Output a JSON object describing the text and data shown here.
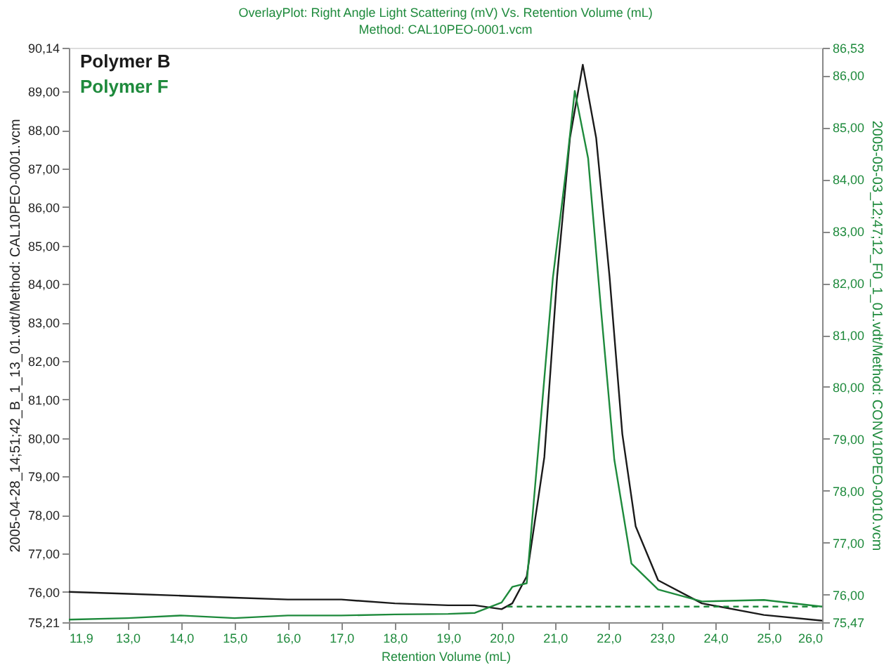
{
  "chart_data": {
    "type": "line",
    "title": "OverlayPlot: Right Angle Light Scattering (mV) Vs. Retention Volume (mL)",
    "subtitle": "Method: CAL10PEO-0001.vcm",
    "xlabel": "Retention Volume (mL)",
    "ylabel": "2005-04-28_14;51;42_B_1_13_01.vdt/Method: CAL10PEO-0001.vcm",
    "y2label": "2005-05-03_12;47;12_F0_1_01.vdt/Method: CONV10PEO-0010.vcm",
    "xlim": [
      11.9,
      26.0
    ],
    "xticks": [
      {
        "value": 11.9,
        "label": "11,9"
      },
      {
        "value": 13,
        "label": "13,0"
      },
      {
        "value": 14,
        "label": "14,0"
      },
      {
        "value": 15,
        "label": "15,0"
      },
      {
        "value": 16,
        "label": "16,0"
      },
      {
        "value": 17,
        "label": "17,0"
      },
      {
        "value": 18,
        "label": "18,0"
      },
      {
        "value": 19,
        "label": "19,0"
      },
      {
        "value": 20,
        "label": "20,0"
      },
      {
        "value": 21,
        "label": "21,0"
      },
      {
        "value": 22,
        "label": "22,0"
      },
      {
        "value": 23,
        "label": "23,0"
      },
      {
        "value": 24,
        "label": "24,0"
      },
      {
        "value": 25,
        "label": "25,0"
      },
      {
        "value": 26,
        "label": "26,0"
      }
    ],
    "ylim": [
      75.21,
      90.14
    ],
    "yticks": [
      {
        "value": 75.21,
        "label": "75,21"
      },
      {
        "value": 76,
        "label": "76,00"
      },
      {
        "value": 77,
        "label": "77,00"
      },
      {
        "value": 78,
        "label": "78,00"
      },
      {
        "value": 79,
        "label": "79,00"
      },
      {
        "value": 80,
        "label": "80,00"
      },
      {
        "value": 81,
        "label": "81,00"
      },
      {
        "value": 82,
        "label": "82,00"
      },
      {
        "value": 83,
        "label": "83,00"
      },
      {
        "value": 84,
        "label": "84,00"
      },
      {
        "value": 85,
        "label": "85,00"
      },
      {
        "value": 86,
        "label": "86,00"
      },
      {
        "value": 87,
        "label": "87,00"
      },
      {
        "value": 88,
        "label": "88,00"
      },
      {
        "value": 89,
        "label": "89,00"
      },
      {
        "value": 90.14,
        "label": "90,14"
      }
    ],
    "y2lim": [
      75.47,
      86.53
    ],
    "y2ticks": [
      {
        "value": 75.47,
        "label": "75,47"
      },
      {
        "value": 76,
        "label": "76,00"
      },
      {
        "value": 77,
        "label": "77,00"
      },
      {
        "value": 78,
        "label": "78,00"
      },
      {
        "value": 79,
        "label": "79,00"
      },
      {
        "value": 80,
        "label": "80,00"
      },
      {
        "value": 81,
        "label": "81,00"
      },
      {
        "value": 82,
        "label": "82,00"
      },
      {
        "value": 83,
        "label": "83,00"
      },
      {
        "value": 84,
        "label": "84,00"
      },
      {
        "value": 85,
        "label": "85,00"
      },
      {
        "value": 86,
        "label": "86,00"
      },
      {
        "value": 86.53,
        "label": "86,53"
      }
    ],
    "grid": false,
    "legend": "top left",
    "marker": "none",
    "series": [
      {
        "name": "Polymer B",
        "color": "#1a1a1a",
        "x": [
          11.9,
          13.0,
          14.0,
          15.0,
          16.0,
          17.0,
          18.0,
          19.0,
          19.5,
          20.0,
          20.2,
          20.47,
          20.8,
          21.04,
          21.28,
          21.52,
          21.77,
          22.02,
          22.26,
          22.51,
          22.93,
          23.75,
          24.91,
          26.0
        ],
        "values": [
          76.0,
          75.95,
          75.9,
          75.85,
          75.8,
          75.8,
          75.7,
          75.65,
          75.65,
          75.55,
          75.7,
          76.4,
          79.5,
          84.2,
          87.8,
          89.7,
          87.8,
          84.2,
          80.1,
          77.7,
          76.3,
          75.7,
          75.4,
          75.25
        ]
      },
      {
        "name": "Polymer F",
        "color": "#1e8a3c",
        "axis": "y2",
        "x": [
          11.9,
          13.0,
          14.0,
          15.0,
          16.0,
          17.0,
          18.0,
          19.0,
          19.5,
          20.0,
          20.2,
          20.47,
          20.72,
          20.96,
          21.21,
          21.37,
          21.62,
          21.86,
          22.11,
          22.43,
          22.93,
          23.75,
          24.91,
          26.0
        ],
        "values": [
          75.52,
          75.55,
          75.6,
          75.55,
          75.6,
          75.6,
          75.62,
          75.63,
          75.65,
          75.85,
          76.15,
          76.22,
          79.2,
          82.1,
          84.2,
          85.7,
          84.4,
          81.5,
          78.6,
          76.6,
          76.1,
          75.87,
          75.9,
          75.77
        ]
      },
      {
        "color": "#1e8a3c",
        "axis": "y2",
        "line_style": "dashed",
        "x": [
          20.1,
          26.0
        ],
        "values": [
          75.77,
          75.77
        ]
      }
    ]
  }
}
